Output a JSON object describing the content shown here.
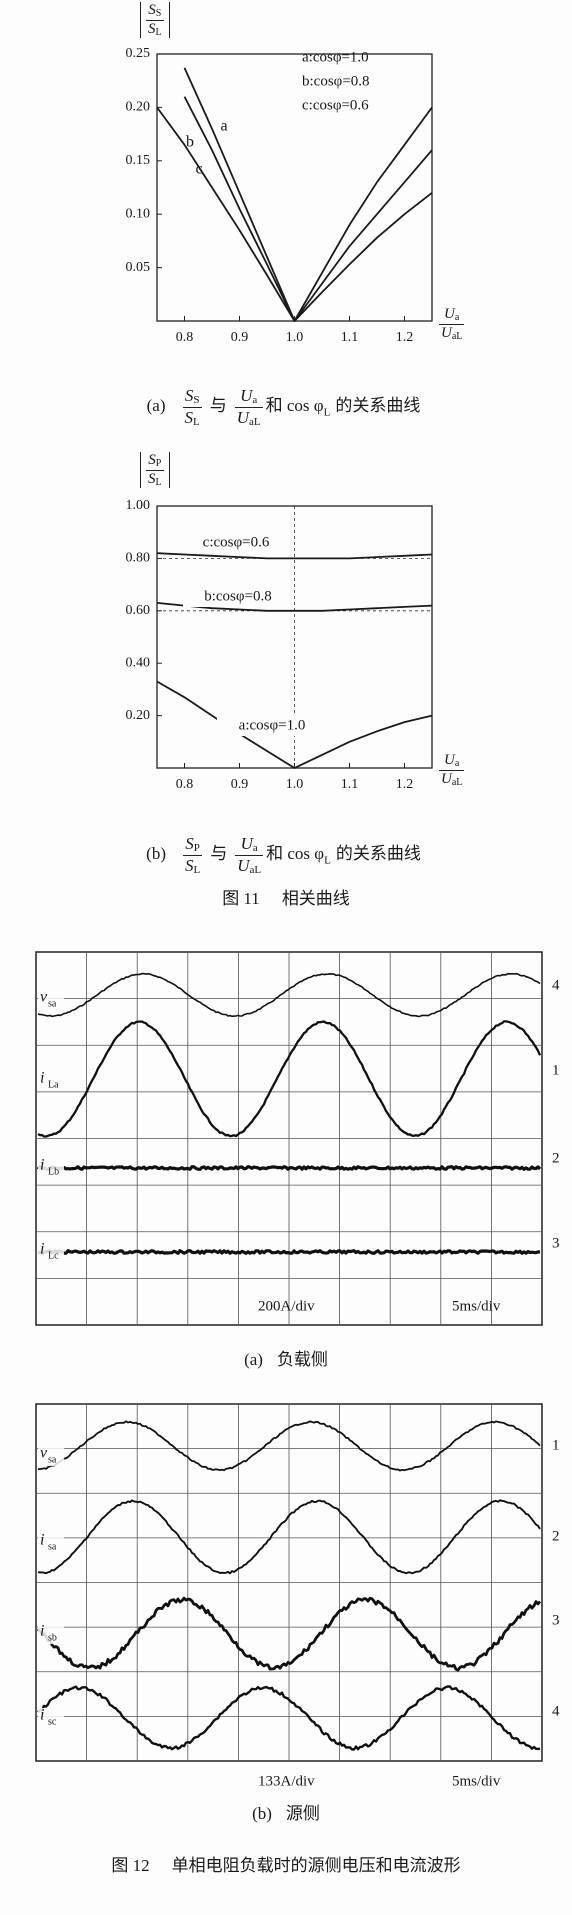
{
  "chart_data": [
    {
      "type": "line",
      "x": [
        0.75,
        0.8,
        0.85,
        0.9,
        0.95,
        1.0,
        1.05,
        1.1,
        1.15,
        1.2,
        1.25
      ],
      "xlim": [
        0.75,
        1.25
      ],
      "ylim": [
        0,
        0.25
      ],
      "xticks": [
        0.8,
        0.9,
        {
          "value": 1,
          "label": "1.0"
        },
        1.1,
        1.2
      ],
      "yticks": [
        0.05,
        {
          "value": 0.1,
          "label": "0.10"
        },
        0.15,
        {
          "value": 0.2,
          "label": "0.20"
        },
        0.25
      ],
      "y_label": {
        "n": "S",
        "ns": "S",
        "d": "S",
        "ds": "L"
      },
      "x_label": {
        "n": "U",
        "ns": "a",
        "d": "U",
        "ds": "aL"
      },
      "legend": "upper right",
      "series": [
        {
          "name": "a:cosφ=1.0",
          "label": "a",
          "color": "#1a1a1a",
          "values": [
            null,
            0.237,
            0.18,
            0.12,
            0.06,
            0,
            0.045,
            0.09,
            0.13,
            0.165,
            0.2
          ]
        },
        {
          "name": "b:cosφ=0.8",
          "label": "b",
          "color": "#1a1a1a",
          "values": [
            null,
            0.21,
            0.16,
            0.105,
            0.053,
            0,
            0.035,
            0.07,
            0.1,
            0.13,
            0.16
          ]
        },
        {
          "name": "c:cosφ=0.6",
          "label": "c",
          "color": "#1a1a1a",
          "values": [
            0.2,
            0.165,
            0.125,
            0.085,
            0.043,
            0,
            0.027,
            0.053,
            0.078,
            0.1,
            0.12
          ]
        }
      ]
    },
    {
      "type": "line",
      "x": [
        0.75,
        0.8,
        0.85,
        0.9,
        0.95,
        1.0,
        1.05,
        1.1,
        1.15,
        1.2,
        1.25
      ],
      "xlim": [
        0.75,
        1.25
      ],
      "ylim": [
        0,
        1
      ],
      "xticks": [
        0.8,
        0.9,
        {
          "value": 1,
          "label": "1.0"
        },
        1.1,
        1.2
      ],
      "yticks": [
        {
          "value": 0.2,
          "label": "0.20"
        },
        {
          "value": 0.4,
          "label": "0.40"
        },
        {
          "value": 0.6,
          "label": "0.60"
        },
        {
          "value": 0.8,
          "label": "0.80"
        },
        {
          "value": 1,
          "label": "1.00"
        }
      ],
      "y_label": {
        "n": "S",
        "ns": "P",
        "d": "S",
        "ds": "L"
      },
      "x_label": {
        "n": "U",
        "ns": "a",
        "d": "U",
        "ds": "aL"
      },
      "legend": "inline",
      "reference_y": [
        0.8,
        0.6
      ],
      "reference_x": [
        1
      ],
      "series": [
        {
          "name": "a:cosφ=1.0",
          "color": "#1a1a1a",
          "values": [
            0.33,
            0.27,
            0.2,
            0.13,
            0.065,
            0,
            0.05,
            0.1,
            0.14,
            0.175,
            0.2
          ]
        },
        {
          "name": "b:cosφ=0.8",
          "color": "#1a1a1a",
          "values": [
            0.63,
            0.62,
            0.61,
            0.605,
            0.6,
            0.6,
            0.6,
            0.605,
            0.61,
            0.615,
            0.62
          ]
        },
        {
          "name": "c:cosφ=0.6",
          "color": "#1a1a1a",
          "values": [
            0.82,
            0.815,
            0.81,
            0.805,
            0.8,
            0.8,
            0.8,
            0.8,
            0.805,
            0.81,
            0.815
          ]
        }
      ]
    }
  ],
  "captions": [
    {
      "label": "(a)",
      "f1": {
        "n": "S",
        "ns": "S",
        "d": "S",
        "ds": "L"
      },
      "t1": "与",
      "f2": {
        "n": "U",
        "ns": "a",
        "d": "U",
        "ds": "aL"
      },
      "t2": "和 cos φ",
      "t2_sub": "L",
      "t3": "的关系曲线"
    },
    {
      "label": "(b)",
      "f1": {
        "n": "S",
        "ns": "P",
        "d": "S",
        "ds": "L"
      },
      "t1": "与",
      "f2": {
        "n": "U",
        "ns": "a",
        "d": "U",
        "ds": "aL"
      },
      "t2": "和 cos φ",
      "t2_sub": "L",
      "t3": "的关系曲线"
    }
  ],
  "figure_titles": [
    {
      "number": "图 11",
      "text": "相关曲线"
    },
    {
      "number": "图 12",
      "text": "单相电阻负载时的源侧电压和电流波形"
    }
  ],
  "scopes": [
    {
      "channels": [
        {
          "name": "v",
          "sub": "sa",
          "number": "4"
        },
        {
          "name": "i",
          "sub": "La",
          "number": "1"
        },
        {
          "name": "i",
          "sub": "Lb",
          "number": "2"
        },
        {
          "name": "i",
          "sub": "Lc",
          "number": "3"
        }
      ],
      "scale": "200A/div",
      "time": "5ms/div",
      "caption": {
        "label": "(a)",
        "text": "负载侧"
      }
    },
    {
      "channels": [
        {
          "name": "v",
          "sub": "sa",
          "number": "1"
        },
        {
          "name": "i",
          "sub": "sa",
          "number": "2"
        },
        {
          "name": "i",
          "sub": "sb",
          "number": "3"
        },
        {
          "name": "i",
          "sub": "sc",
          "number": "4"
        }
      ],
      "scale": "133A/div",
      "time": "5ms/div",
      "caption": {
        "label": "(b)",
        "text": "源侧"
      }
    }
  ]
}
